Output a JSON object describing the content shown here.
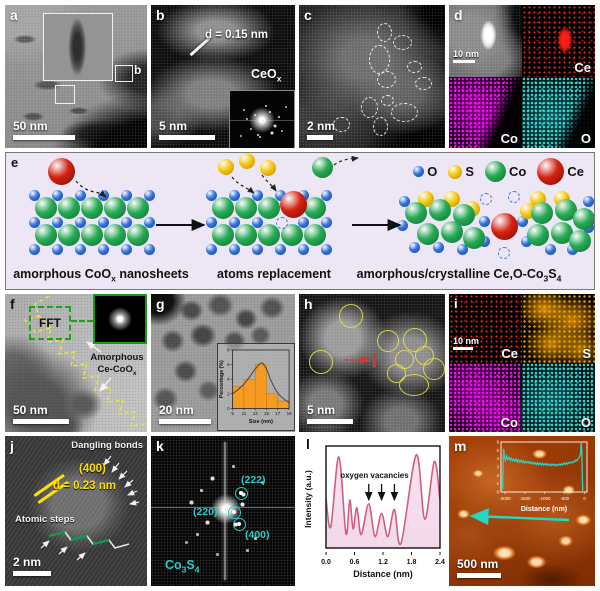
{
  "colors": {
    "atoms": {
      "O": {
        "main": "#3575dd",
        "dark": "#15408f"
      },
      "S": {
        "main": "#f6c80e",
        "dark": "#b78a00"
      },
      "Co": {
        "main": "#27ab55",
        "dark": "#0c6e30"
      },
      "Ce": {
        "main": "#d42312",
        "dark": "#7e0b05"
      }
    },
    "panel_e_bg": "#ece6f5",
    "accent_cyan": "#2cc9c9",
    "accent_yellow": "#e6e046",
    "map_red": "#ff2d19",
    "map_orange": "#f8a600",
    "map_magenta": "#f812f8",
    "map_cyan": "#3ce1e1",
    "histogram_bar": "#f59a23",
    "profile_stroke": "#cf5f7e",
    "profile_fill": "#f2d9ea",
    "afm_line": "#25d5c5"
  },
  "panels": {
    "a": {
      "label": "a",
      "inset_label": "b",
      "scalebar": "50 nm"
    },
    "b": {
      "label": "b",
      "d_spacing": "d = 0.15 nm",
      "phase": "CeO",
      "phase_sub": "x",
      "scalebar": "5 nm"
    },
    "c": {
      "label": "c",
      "scalebar": "2 nm"
    },
    "d": {
      "label": "d",
      "scalebar": "10 nm",
      "map_ce": "Ce",
      "map_co": "Co",
      "map_o": "O"
    },
    "e": {
      "label": "e",
      "legend": [
        {
          "atom": "O",
          "label": "O"
        },
        {
          "atom": "S",
          "label": "S"
        },
        {
          "atom": "Co",
          "label": "Co"
        },
        {
          "atom": "Ce",
          "label": "Ce"
        }
      ],
      "caption1": {
        "a": "amorphous CoO",
        "sub": "x",
        "b": " nanosheets"
      },
      "caption2": "atoms replacement",
      "caption3": {
        "a": "amorphous/crystalline Ce,O-Co",
        "sub1": "3",
        "b": "S",
        "sub2": "4"
      }
    },
    "f": {
      "label": "f",
      "fft": "FFT",
      "annot1": "Amorphous",
      "annot2": "Ce-CoO",
      "annot2_sub": "x",
      "scalebar": "50 nm"
    },
    "g": {
      "label": "g",
      "scalebar": "20 nm"
    },
    "h": {
      "label": "h",
      "scalebar": "5 nm"
    },
    "i": {
      "label": "i",
      "scalebar": "10 nm",
      "map_ce": "Ce",
      "map_s": "S",
      "map_co": "Co",
      "map_o": "O"
    },
    "j": {
      "label": "j",
      "annot_top": "Dangling bonds",
      "plane": "(400)",
      "d_spacing": "d = 0.23 nm",
      "annot_bottom": "Atomic steps",
      "scalebar": "2 nm"
    },
    "k": {
      "label": "k",
      "spot1": "(222)",
      "spot2": "(220)",
      "spot3": "(400)",
      "phase": "Co",
      "phase_sub1": "3",
      "phase_b": "S",
      "phase_sub2": "4"
    },
    "l": {
      "label": "l",
      "annotation": "oxygen vacancies"
    },
    "m": {
      "label": "m",
      "scalebar": "500 nm"
    }
  },
  "chart_data": [
    {
      "id": "size_histogram",
      "type": "bar",
      "xlabel": "Size (nm)",
      "ylabel": "Percentage (%)",
      "xlim": [
        9,
        19
      ],
      "ylim": [
        0,
        8
      ],
      "xticks": [
        9,
        11,
        13,
        15,
        17,
        19
      ],
      "yticks": [
        0,
        2,
        4,
        6,
        8
      ],
      "bin_edges": [
        9,
        11,
        13,
        15,
        17,
        19
      ],
      "values": [
        3,
        4,
        6,
        2,
        1
      ],
      "curve": [
        [
          9,
          2
        ],
        [
          10,
          2.6
        ],
        [
          11,
          3.3
        ],
        [
          12,
          4.3
        ],
        [
          13,
          5.4
        ],
        [
          13.8,
          6.1
        ],
        [
          14.3,
          6.25
        ],
        [
          15,
          5.4
        ],
        [
          15.8,
          3.8
        ],
        [
          16.5,
          2.7
        ],
        [
          17.3,
          1.8
        ],
        [
          18.2,
          1.2
        ],
        [
          19,
          0.8
        ]
      ]
    },
    {
      "id": "intensity_profile",
      "type": "line",
      "xlabel": "Distance (nm)",
      "ylabel": "Intensity (a.u.)",
      "xlim": [
        0,
        2.4
      ],
      "xticks": [
        "0.0",
        "0.6",
        "1.2",
        "1.8",
        "2.4"
      ],
      "annotation": "oxygen vacancies",
      "arrow_x": [
        0.9,
        1.17,
        1.44
      ],
      "points": [
        [
          0,
          0.52
        ],
        [
          0.1,
          0.22
        ],
        [
          0.27,
          0.95
        ],
        [
          0.42,
          0.15
        ],
        [
          0.5,
          0.5
        ],
        [
          0.57,
          0.2
        ],
        [
          0.65,
          0.42
        ],
        [
          0.74,
          0.14
        ],
        [
          0.9,
          0.46
        ],
        [
          1.03,
          0.12
        ],
        [
          1.17,
          0.36
        ],
        [
          1.3,
          0.12
        ],
        [
          1.44,
          0.4
        ],
        [
          1.58,
          0.05
        ],
        [
          1.9,
          0.97
        ],
        [
          2.08,
          0.3
        ],
        [
          2.28,
          0.9
        ],
        [
          2.4,
          0.5
        ]
      ]
    },
    {
      "id": "afm_height_profile",
      "type": "line",
      "xlabel": "Distance (nm)",
      "xlim": [
        -2100,
        60
      ],
      "ylim": [
        0,
        6
      ],
      "xticks": [
        -2000,
        -1500,
        -1000,
        -500,
        0
      ],
      "yticks": [
        0,
        1,
        2,
        3,
        4,
        5,
        6
      ],
      "points": [
        [
          -2060,
          0.3
        ],
        [
          -2035,
          5.2
        ],
        [
          -2015,
          4.3
        ],
        [
          -1990,
          3.8
        ],
        [
          -1960,
          4.3
        ],
        [
          -1930,
          3.9
        ],
        [
          -1900,
          4.15
        ],
        [
          -1870,
          3.8
        ],
        [
          -1840,
          4.05
        ],
        [
          -1810,
          3.75
        ],
        [
          -1780,
          3.95
        ],
        [
          -1750,
          3.7
        ],
        [
          -1720,
          3.95
        ],
        [
          -1690,
          3.6
        ],
        [
          -1660,
          3.85
        ],
        [
          -1630,
          3.6
        ],
        [
          -1600,
          3.8
        ],
        [
          -1570,
          3.55
        ],
        [
          -1540,
          3.75
        ],
        [
          -1510,
          3.5
        ],
        [
          -1480,
          3.7
        ],
        [
          -1450,
          3.5
        ],
        [
          -1420,
          3.65
        ],
        [
          -1390,
          3.45
        ],
        [
          -1360,
          3.6
        ],
        [
          -1330,
          3.4
        ],
        [
          -1300,
          3.55
        ],
        [
          -1270,
          3.35
        ],
        [
          -1240,
          3.5
        ],
        [
          -1210,
          3.3
        ],
        [
          -1180,
          3.5
        ],
        [
          -1150,
          3.3
        ],
        [
          -1120,
          3.45
        ],
        [
          -1090,
          3.25
        ],
        [
          -1060,
          3.45
        ],
        [
          -1030,
          3.25
        ],
        [
          -1000,
          3.4
        ],
        [
          -970,
          3.2
        ],
        [
          -940,
          3.4
        ],
        [
          -910,
          3.2
        ],
        [
          -880,
          3.35
        ],
        [
          -850,
          3.15
        ],
        [
          -820,
          3.35
        ],
        [
          -790,
          3.2
        ],
        [
          -760,
          3.35
        ],
        [
          -730,
          3.15
        ],
        [
          -700,
          3.3
        ],
        [
          -670,
          3.2
        ],
        [
          -640,
          3.35
        ],
        [
          -610,
          3.2
        ],
        [
          -580,
          3.4
        ],
        [
          -550,
          3.25
        ],
        [
          -520,
          3.45
        ],
        [
          -490,
          3.3
        ],
        [
          -460,
          3.5
        ],
        [
          -430,
          3.35
        ],
        [
          -400,
          3.55
        ],
        [
          -370,
          3.45
        ],
        [
          -340,
          3.6
        ],
        [
          -310,
          3.5
        ],
        [
          -280,
          3.7
        ],
        [
          -250,
          3.6
        ],
        [
          -220,
          3.85
        ],
        [
          -190,
          3.75
        ],
        [
          -160,
          4.0
        ],
        [
          -130,
          4.2
        ],
        [
          -100,
          4.6
        ],
        [
          -85,
          6.0
        ],
        [
          -70,
          4.8
        ],
        [
          -60,
          2.5
        ],
        [
          -50,
          0.6
        ],
        [
          -45,
          0.15
        ]
      ]
    }
  ]
}
